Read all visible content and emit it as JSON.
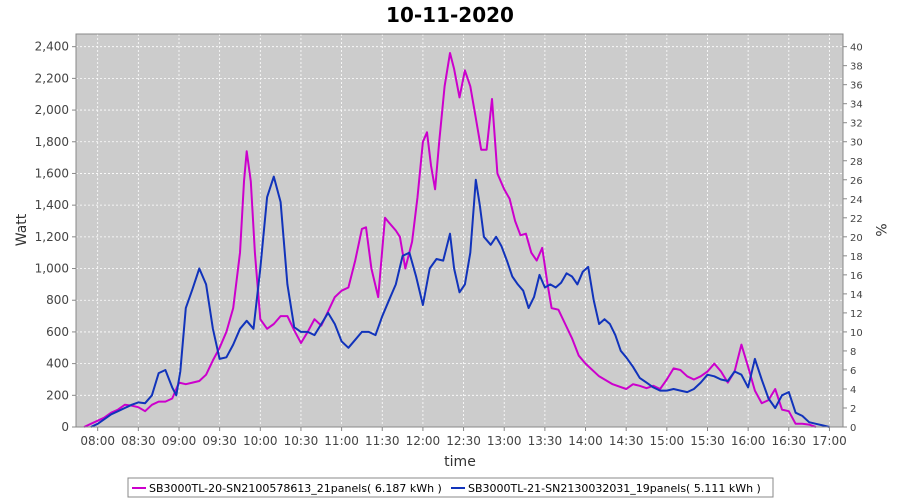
{
  "chart_data": {
    "type": "line",
    "title": "10-11-2020",
    "xlabel": "time",
    "ylabel": "Watt",
    "ylabel_right": "%",
    "ylim": [
      0,
      2480
    ],
    "ylim_right": [
      0,
      41.33
    ],
    "x_ticks": [
      "08:00",
      "08:30",
      "09:00",
      "09:30",
      "10:00",
      "10:30",
      "11:00",
      "11:30",
      "12:00",
      "12:30",
      "13:00",
      "13:30",
      "14:00",
      "14:30",
      "15:00",
      "15:30",
      "16:00",
      "16:30",
      "17:00"
    ],
    "y_ticks": [
      0,
      200,
      400,
      600,
      800,
      1000,
      1200,
      1400,
      1600,
      1800,
      2000,
      2200,
      2400
    ],
    "y_tick_labels": [
      "0",
      "200",
      "400",
      "600",
      "800",
      "1,000",
      "1,200",
      "1,400",
      "1,600",
      "1,800",
      "2,000",
      "2,200",
      "2,400"
    ],
    "y_right_ticks": [
      "0",
      "2",
      "4",
      "6",
      "8",
      "10",
      "12",
      "14",
      "16",
      "18",
      "20",
      "22",
      "24",
      "26",
      "28",
      "30",
      "32",
      "34",
      "36",
      "38",
      "40"
    ],
    "grid": true,
    "legend_position": "bottom",
    "series": [
      {
        "name": "SB3000TL-20-SN2100578613_21panels( 6.187 kWh )",
        "color": "#cc00cc",
        "points": [
          [
            "07:50",
            0
          ],
          [
            "07:55",
            20
          ],
          [
            "08:00",
            40
          ],
          [
            "08:05",
            60
          ],
          [
            "08:10",
            90
          ],
          [
            "08:15",
            110
          ],
          [
            "08:20",
            140
          ],
          [
            "08:25",
            135
          ],
          [
            "08:30",
            125
          ],
          [
            "08:35",
            100
          ],
          [
            "08:40",
            140
          ],
          [
            "08:45",
            160
          ],
          [
            "08:50",
            160
          ],
          [
            "08:55",
            180
          ],
          [
            "09:00",
            280
          ],
          [
            "09:05",
            270
          ],
          [
            "09:10",
            280
          ],
          [
            "09:15",
            290
          ],
          [
            "09:20",
            330
          ],
          [
            "09:25",
            420
          ],
          [
            "09:30",
            500
          ],
          [
            "09:35",
            600
          ],
          [
            "09:40",
            750
          ],
          [
            "09:45",
            1100
          ],
          [
            "09:48",
            1550
          ],
          [
            "09:50",
            1740
          ],
          [
            "09:53",
            1550
          ],
          [
            "09:56",
            1100
          ],
          [
            "10:00",
            680
          ],
          [
            "10:05",
            620
          ],
          [
            "10:10",
            650
          ],
          [
            "10:15",
            700
          ],
          [
            "10:20",
            700
          ],
          [
            "10:25",
            610
          ],
          [
            "10:30",
            530
          ],
          [
            "10:35",
            600
          ],
          [
            "10:40",
            680
          ],
          [
            "10:45",
            640
          ],
          [
            "10:50",
            730
          ],
          [
            "10:55",
            820
          ],
          [
            "11:00",
            860
          ],
          [
            "11:05",
            880
          ],
          [
            "11:10",
            1050
          ],
          [
            "11:15",
            1250
          ],
          [
            "11:18",
            1260
          ],
          [
            "11:22",
            1000
          ],
          [
            "11:27",
            820
          ],
          [
            "11:32",
            1320
          ],
          [
            "11:35",
            1290
          ],
          [
            "11:40",
            1240
          ],
          [
            "11:43",
            1200
          ],
          [
            "11:47",
            1000
          ],
          [
            "11:52",
            1170
          ],
          [
            "11:56",
            1450
          ],
          [
            "12:00",
            1800
          ],
          [
            "12:03",
            1860
          ],
          [
            "12:06",
            1650
          ],
          [
            "12:09",
            1500
          ],
          [
            "12:12",
            1800
          ],
          [
            "12:16",
            2150
          ],
          [
            "12:20",
            2360
          ],
          [
            "12:23",
            2260
          ],
          [
            "12:27",
            2080
          ],
          [
            "12:31",
            2250
          ],
          [
            "12:35",
            2150
          ],
          [
            "12:39",
            1950
          ],
          [
            "12:43",
            1750
          ],
          [
            "12:47",
            1750
          ],
          [
            "12:51",
            2070
          ],
          [
            "12:55",
            1600
          ],
          [
            "13:00",
            1500
          ],
          [
            "13:04",
            1440
          ],
          [
            "13:08",
            1300
          ],
          [
            "13:12",
            1210
          ],
          [
            "13:16",
            1220
          ],
          [
            "13:20",
            1100
          ],
          [
            "13:24",
            1050
          ],
          [
            "13:28",
            1130
          ],
          [
            "13:32",
            900
          ],
          [
            "13:35",
            750
          ],
          [
            "13:40",
            740
          ],
          [
            "13:45",
            650
          ],
          [
            "13:50",
            560
          ],
          [
            "13:55",
            450
          ],
          [
            "14:00",
            400
          ],
          [
            "14:10",
            320
          ],
          [
            "14:20",
            270
          ],
          [
            "14:30",
            240
          ],
          [
            "14:35",
            270
          ],
          [
            "14:40",
            260
          ],
          [
            "14:45",
            245
          ],
          [
            "14:50",
            260
          ],
          [
            "14:55",
            240
          ],
          [
            "15:00",
            300
          ],
          [
            "15:05",
            370
          ],
          [
            "15:10",
            360
          ],
          [
            "15:15",
            320
          ],
          [
            "15:20",
            300
          ],
          [
            "15:25",
            320
          ],
          [
            "15:30",
            350
          ],
          [
            "15:35",
            400
          ],
          [
            "15:40",
            350
          ],
          [
            "15:45",
            280
          ],
          [
            "15:50",
            350
          ],
          [
            "15:55",
            520
          ],
          [
            "16:00",
            380
          ],
          [
            "16:05",
            230
          ],
          [
            "16:10",
            150
          ],
          [
            "16:15",
            170
          ],
          [
            "16:20",
            240
          ],
          [
            "16:25",
            110
          ],
          [
            "16:30",
            100
          ],
          [
            "16:35",
            20
          ],
          [
            "16:40",
            20
          ],
          [
            "16:45",
            15
          ],
          [
            "16:50",
            0
          ]
        ]
      },
      {
        "name": "SB3000TL-21-SN2130032031_19panels( 5.111 kWh )",
        "color": "#1133bb",
        "points": [
          [
            "07:55",
            0
          ],
          [
            "08:00",
            20
          ],
          [
            "08:05",
            50
          ],
          [
            "08:10",
            80
          ],
          [
            "08:15",
            100
          ],
          [
            "08:20",
            120
          ],
          [
            "08:25",
            140
          ],
          [
            "08:30",
            155
          ],
          [
            "08:35",
            150
          ],
          [
            "08:40",
            200
          ],
          [
            "08:45",
            340
          ],
          [
            "08:50",
            360
          ],
          [
            "08:55",
            250
          ],
          [
            "08:58",
            200
          ],
          [
            "09:01",
            350
          ],
          [
            "09:05",
            750
          ],
          [
            "09:10",
            870
          ],
          [
            "09:15",
            1000
          ],
          [
            "09:20",
            900
          ],
          [
            "09:25",
            620
          ],
          [
            "09:30",
            430
          ],
          [
            "09:35",
            440
          ],
          [
            "09:40",
            520
          ],
          [
            "09:45",
            620
          ],
          [
            "09:50",
            670
          ],
          [
            "09:55",
            620
          ],
          [
            "10:00",
            1000
          ],
          [
            "10:05",
            1450
          ],
          [
            "10:10",
            1580
          ],
          [
            "10:15",
            1420
          ],
          [
            "10:20",
            900
          ],
          [
            "10:25",
            630
          ],
          [
            "10:30",
            600
          ],
          [
            "10:35",
            600
          ],
          [
            "10:40",
            580
          ],
          [
            "10:45",
            650
          ],
          [
            "10:50",
            720
          ],
          [
            "10:55",
            650
          ],
          [
            "11:00",
            540
          ],
          [
            "11:05",
            500
          ],
          [
            "11:10",
            550
          ],
          [
            "11:15",
            600
          ],
          [
            "11:20",
            600
          ],
          [
            "11:25",
            580
          ],
          [
            "11:30",
            700
          ],
          [
            "11:35",
            800
          ],
          [
            "11:40",
            900
          ],
          [
            "11:45",
            1080
          ],
          [
            "11:50",
            1100
          ],
          [
            "11:55",
            950
          ],
          [
            "12:00",
            770
          ],
          [
            "12:05",
            1000
          ],
          [
            "12:10",
            1060
          ],
          [
            "12:15",
            1050
          ],
          [
            "12:20",
            1220
          ],
          [
            "12:23",
            1000
          ],
          [
            "12:27",
            850
          ],
          [
            "12:31",
            900
          ],
          [
            "12:35",
            1100
          ],
          [
            "12:39",
            1560
          ],
          [
            "12:42",
            1400
          ],
          [
            "12:45",
            1200
          ],
          [
            "12:50",
            1150
          ],
          [
            "12:54",
            1200
          ],
          [
            "12:58",
            1140
          ],
          [
            "13:02",
            1050
          ],
          [
            "13:06",
            950
          ],
          [
            "13:10",
            900
          ],
          [
            "13:14",
            860
          ],
          [
            "13:18",
            750
          ],
          [
            "13:22",
            820
          ],
          [
            "13:26",
            960
          ],
          [
            "13:30",
            880
          ],
          [
            "13:34",
            900
          ],
          [
            "13:38",
            880
          ],
          [
            "13:42",
            910
          ],
          [
            "13:46",
            970
          ],
          [
            "13:50",
            950
          ],
          [
            "13:54",
            900
          ],
          [
            "13:58",
            980
          ],
          [
            "14:02",
            1010
          ],
          [
            "14:06",
            800
          ],
          [
            "14:10",
            650
          ],
          [
            "14:14",
            680
          ],
          [
            "14:18",
            650
          ],
          [
            "14:22",
            580
          ],
          [
            "14:26",
            480
          ],
          [
            "14:30",
            440
          ],
          [
            "14:35",
            380
          ],
          [
            "14:40",
            310
          ],
          [
            "14:45",
            280
          ],
          [
            "14:50",
            250
          ],
          [
            "14:55",
            230
          ],
          [
            "15:00",
            230
          ],
          [
            "15:05",
            240
          ],
          [
            "15:10",
            230
          ],
          [
            "15:15",
            220
          ],
          [
            "15:20",
            240
          ],
          [
            "15:25",
            280
          ],
          [
            "15:30",
            330
          ],
          [
            "15:35",
            320
          ],
          [
            "15:40",
            300
          ],
          [
            "15:45",
            290
          ],
          [
            "15:50",
            350
          ],
          [
            "15:55",
            330
          ],
          [
            "16:00",
            250
          ],
          [
            "16:05",
            430
          ],
          [
            "16:10",
            300
          ],
          [
            "16:15",
            180
          ],
          [
            "16:20",
            120
          ],
          [
            "16:25",
            200
          ],
          [
            "16:30",
            220
          ],
          [
            "16:35",
            90
          ],
          [
            "16:40",
            70
          ],
          [
            "16:45",
            30
          ],
          [
            "16:50",
            20
          ],
          [
            "16:55",
            10
          ],
          [
            "17:00",
            0
          ]
        ]
      }
    ]
  }
}
